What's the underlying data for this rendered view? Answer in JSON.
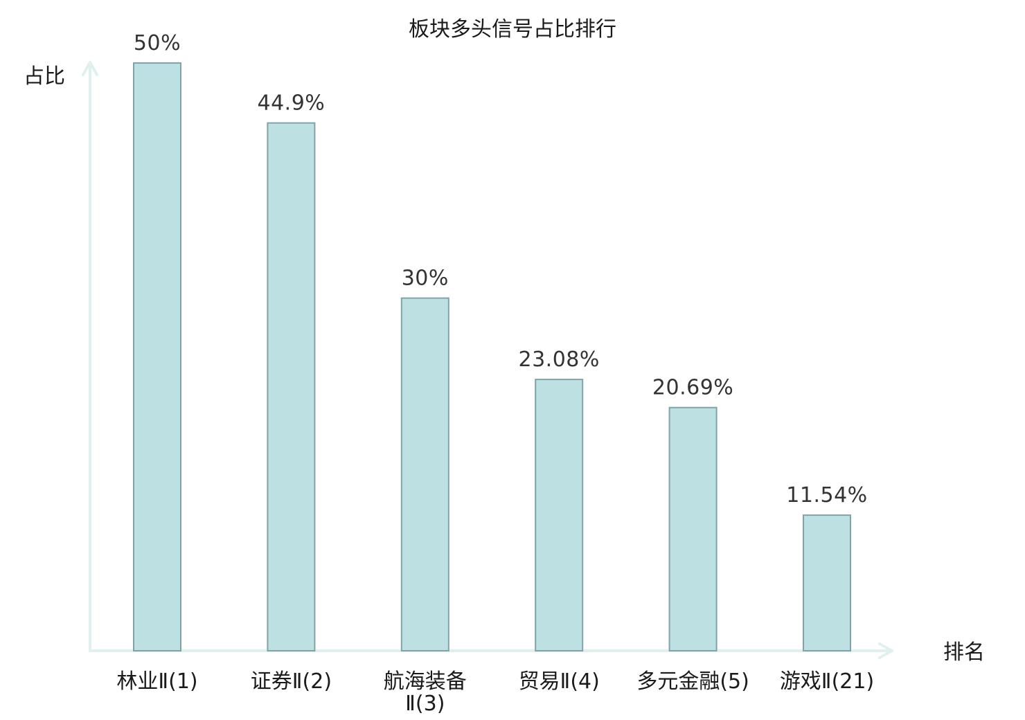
{
  "chart_data": {
    "type": "bar",
    "title": "板块多头信号占比排行",
    "xlabel": "排名",
    "ylabel": "占比",
    "ylim": [
      0,
      50
    ],
    "grid": false,
    "categories": [
      "林业Ⅱ(1)",
      "证券Ⅱ(2)",
      "航海装备Ⅱ(3)",
      "贸易Ⅱ(4)",
      "多元金融(5)",
      "游戏Ⅱ(21)"
    ],
    "category_label_lines": [
      [
        "林业Ⅱ(1)"
      ],
      [
        "证券Ⅱ(2)"
      ],
      [
        "航海装备",
        "Ⅱ(3)"
      ],
      [
        "贸易Ⅱ(4)"
      ],
      [
        "多元金融(5)"
      ],
      [
        "游戏Ⅱ(21)"
      ]
    ],
    "values": [
      50,
      44.9,
      30,
      23.08,
      20.69,
      11.54
    ],
    "value_labels": [
      "50%",
      "44.9%",
      "30%",
      "23.08%",
      "20.69%",
      "11.54%"
    ],
    "highlighted_category_index": 5
  },
  "colors": {
    "bar_fill": "#bde0e3",
    "bar_stroke": "#7fa3a8",
    "axis": "#dff0ef",
    "highlight_text": "#e02020",
    "label_text": "#1a1a1a",
    "value_text": "#333333"
  }
}
